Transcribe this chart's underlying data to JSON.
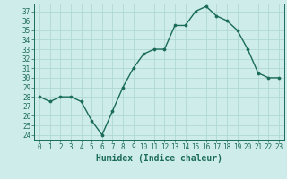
{
  "x": [
    0,
    1,
    2,
    3,
    4,
    5,
    6,
    7,
    8,
    9,
    10,
    11,
    12,
    13,
    14,
    15,
    16,
    17,
    18,
    19,
    20,
    21,
    22,
    23
  ],
  "y": [
    28,
    27.5,
    28,
    28,
    27.5,
    25.5,
    24,
    26.5,
    29,
    31,
    32.5,
    33,
    33,
    35.5,
    35.5,
    37,
    37.5,
    36.5,
    36,
    35,
    33,
    30.5,
    30,
    30
  ],
  "line_color": "#1a6b5a",
  "marker_color": "#1a6b5a",
  "bg_color": "#ceecea",
  "grid_color": "#b0d8d4",
  "xlabel": "Humidex (Indice chaleur)",
  "ylabel": "",
  "xlim": [
    -0.5,
    23.5
  ],
  "ylim": [
    23.5,
    37.8
  ],
  "yticks": [
    24,
    25,
    26,
    27,
    28,
    29,
    30,
    31,
    32,
    33,
    34,
    35,
    36,
    37
  ],
  "xticks": [
    0,
    1,
    2,
    3,
    4,
    5,
    6,
    7,
    8,
    9,
    10,
    11,
    12,
    13,
    14,
    15,
    16,
    17,
    18,
    19,
    20,
    21,
    22,
    23
  ],
  "tick_label_size": 5.5,
  "xlabel_size": 7.0,
  "line_width": 1.0,
  "marker_size": 2.2
}
